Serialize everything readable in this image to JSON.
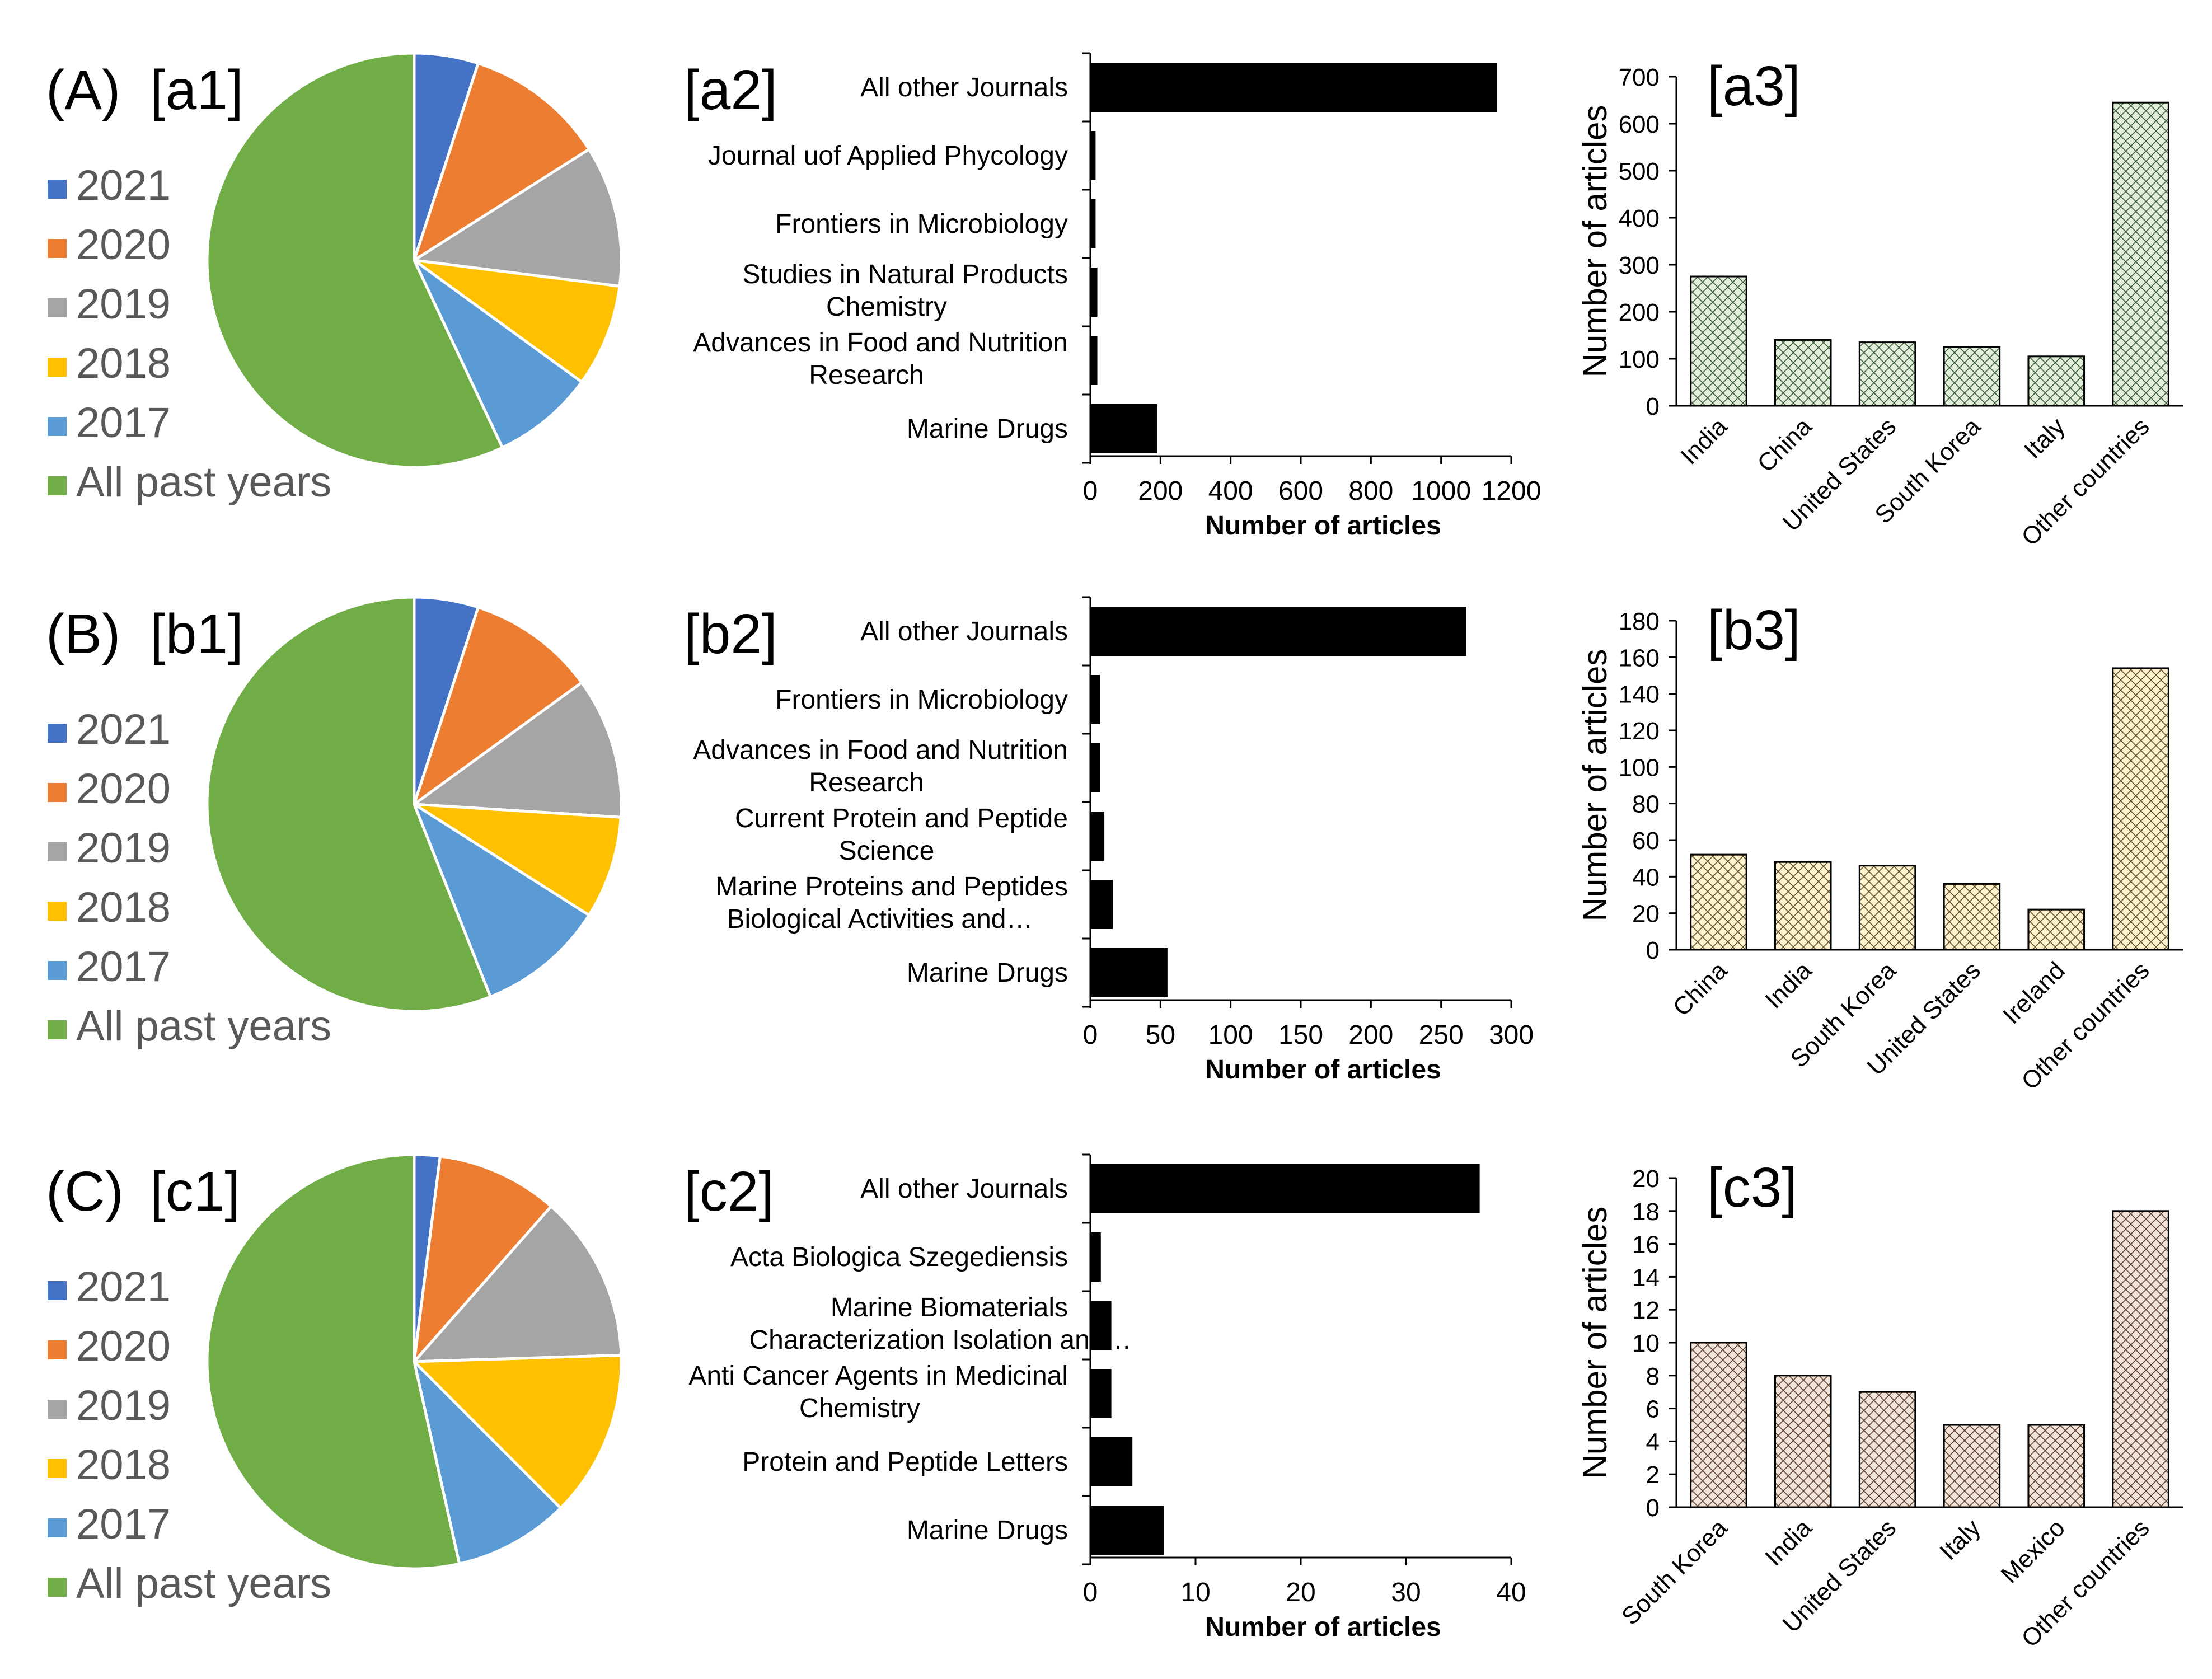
{
  "chart_data": [
    {
      "id": "a1",
      "type": "pie",
      "row_label": "(A)",
      "panel_label": "[a1]",
      "legend": [
        "2021",
        "2020",
        "2019",
        "2018",
        "2017",
        "All past years"
      ],
      "values": [
        5,
        11,
        11,
        8,
        8,
        57
      ],
      "colors": [
        "#4472C4",
        "#ED7D31",
        "#A5A5A5",
        "#FFC000",
        "#5B9BD5",
        "#70AD47"
      ]
    },
    {
      "id": "a2",
      "type": "bar",
      "orientation": "horizontal",
      "panel_label": "[a2]",
      "categories": [
        "All other Journals",
        "Journal uof Applied Phycology",
        "Frontiers in Microbiology",
        "Studies in Natural Products Chemistry",
        "Advances in Food and Nutrition Research",
        "Marine Drugs"
      ],
      "values": [
        1160,
        15,
        15,
        20,
        20,
        190
      ],
      "xlabel": "Number of articles",
      "xlim": [
        0,
        1200
      ],
      "xticks": [
        0,
        200,
        400,
        600,
        800,
        1000,
        1200
      ],
      "color": "#000000"
    },
    {
      "id": "a3",
      "type": "bar",
      "orientation": "vertical",
      "panel_label": "[a3]",
      "categories": [
        "India",
        "China",
        "United States",
        "South Korea",
        "Italy",
        "Other countries"
      ],
      "values": [
        275,
        140,
        135,
        125,
        105,
        645
      ],
      "ylabel": "Number of articles",
      "ylim": [
        0,
        700
      ],
      "yticks": [
        0,
        100,
        200,
        300,
        400,
        500,
        600,
        700
      ],
      "fill": "#E2EFDA",
      "hatch_color": "#3A5A3A"
    },
    {
      "id": "b1",
      "type": "pie",
      "row_label": "(B)",
      "panel_label": "[b1]",
      "legend": [
        "2021",
        "2020",
        "2019",
        "2018",
        "2017",
        "All past years"
      ],
      "values": [
        5,
        10,
        11,
        8,
        10,
        56
      ],
      "colors": [
        "#4472C4",
        "#ED7D31",
        "#A5A5A5",
        "#FFC000",
        "#5B9BD5",
        "#70AD47"
      ]
    },
    {
      "id": "b2",
      "type": "bar",
      "orientation": "horizontal",
      "panel_label": "[b2]",
      "categories": [
        "All other Journals",
        "Frontiers in Microbiology",
        "Advances in Food and Nutrition Research",
        "Current Protein and Peptide Science",
        "Marine Proteins and Peptides Biological Activities and…",
        "Marine Drugs"
      ],
      "values": [
        268,
        7,
        7,
        10,
        16,
        55
      ],
      "xlabel": "Number of articles",
      "xlim": [
        0,
        300
      ],
      "xticks": [
        0,
        50,
        100,
        150,
        200,
        250,
        300
      ],
      "color": "#000000"
    },
    {
      "id": "b3",
      "type": "bar",
      "orientation": "vertical",
      "panel_label": "[b3]",
      "categories": [
        "China",
        "India",
        "South Korea",
        "United States",
        "Ireland",
        "Other countries"
      ],
      "values": [
        52,
        48,
        46,
        36,
        22,
        154
      ],
      "ylabel": "Number of articles",
      "ylim": [
        0,
        180
      ],
      "yticks": [
        0,
        20,
        40,
        60,
        80,
        100,
        120,
        140,
        160,
        180
      ],
      "fill": "#FFF2CC",
      "hatch_color": "#5A5030"
    },
    {
      "id": "c1",
      "type": "pie",
      "row_label": "(C)",
      "panel_label": "[c1]",
      "legend": [
        "2021",
        "2020",
        "2019",
        "2018",
        "2017",
        "All past years"
      ],
      "values": [
        2,
        9.5,
        13,
        13,
        9,
        53.5
      ],
      "colors": [
        "#4472C4",
        "#ED7D31",
        "#A5A5A5",
        "#FFC000",
        "#5B9BD5",
        "#70AD47"
      ]
    },
    {
      "id": "c2",
      "type": "bar",
      "orientation": "horizontal",
      "panel_label": "[c2]",
      "categories": [
        "All other Journals",
        "Acta Biologica Szegediensis",
        "Marine Biomaterials Characterization Isolation and…",
        "Anti Cancer Agents in Medicinal Chemistry",
        "Protein and Peptide Letters",
        "Marine Drugs"
      ],
      "values": [
        37,
        1,
        2,
        2,
        4,
        7
      ],
      "xlabel": "Number of articles",
      "xlim": [
        0,
        40
      ],
      "xticks": [
        0,
        10,
        20,
        30,
        40
      ],
      "color": "#000000"
    },
    {
      "id": "c3",
      "type": "bar",
      "orientation": "vertical",
      "panel_label": "[c3]",
      "categories": [
        "South Korea",
        "India",
        "United States",
        "Italy",
        "Mexico",
        "Other countries"
      ],
      "values": [
        10,
        8,
        7,
        5,
        5,
        18
      ],
      "ylabel": "Number of articles",
      "ylim": [
        0,
        20
      ],
      "yticks": [
        0,
        2,
        4,
        6,
        8,
        10,
        12,
        14,
        16,
        18,
        20
      ],
      "fill": "#F2E4D8",
      "hatch_color": "#5A4030"
    }
  ]
}
